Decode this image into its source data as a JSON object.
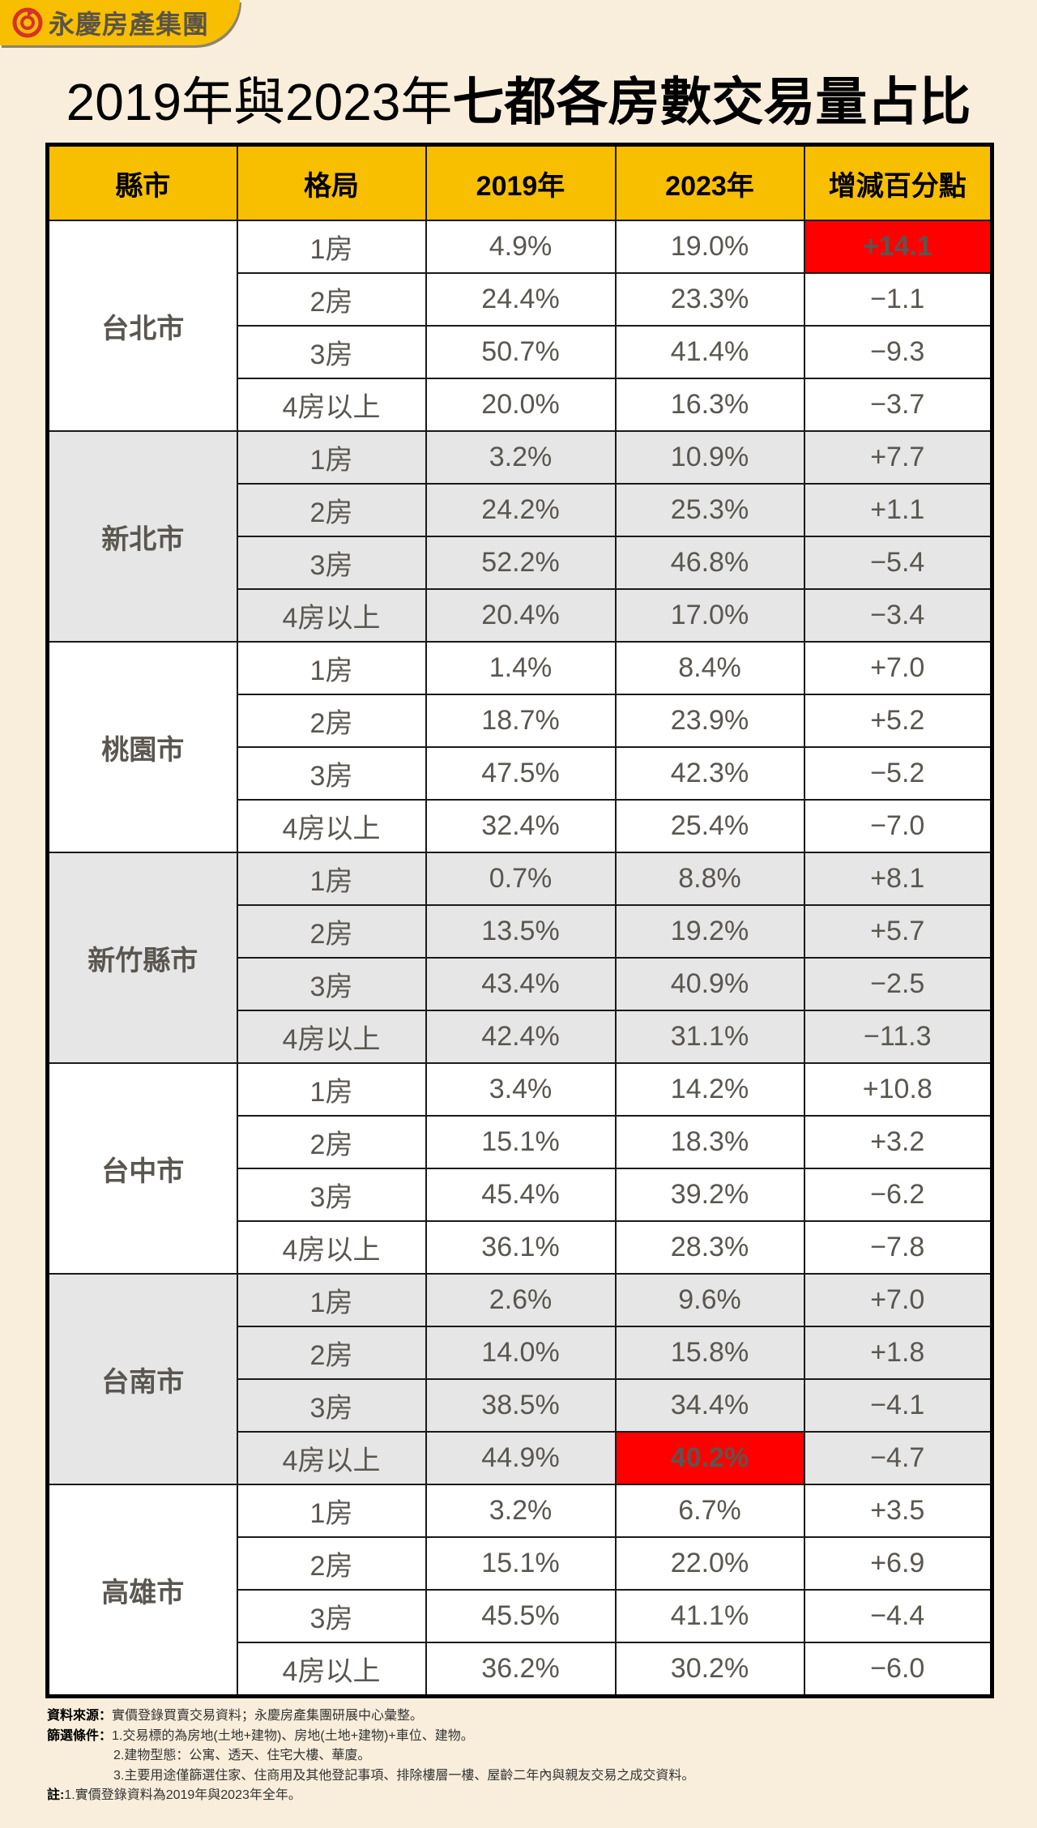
{
  "brand": {
    "logo_text": "永慶房產集團",
    "logo_icon": "yungching-swirl-icon",
    "tab_color": "#f8bf00"
  },
  "title": {
    "part1": "2019年與2023年",
    "part2": "七都各房數交易量占比"
  },
  "table": {
    "headers": [
      "縣市",
      "格局",
      "2019年",
      "2023年",
      "增減百分點"
    ],
    "groups": [
      {
        "city": "台北市",
        "rows": [
          {
            "layout": "1房",
            "y2019": "4.9%",
            "y2023": "19.0%",
            "delta": "+14.1",
            "highlight": "delta"
          },
          {
            "layout": "2房",
            "y2019": "24.4%",
            "y2023": "23.3%",
            "delta": "−1.1"
          },
          {
            "layout": "3房",
            "y2019": "50.7%",
            "y2023": "41.4%",
            "delta": "−9.3"
          },
          {
            "layout": "4房以上",
            "y2019": "20.0%",
            "y2023": "16.3%",
            "delta": "−3.7"
          }
        ]
      },
      {
        "city": "新北市",
        "rows": [
          {
            "layout": "1房",
            "y2019": "3.2%",
            "y2023": "10.9%",
            "delta": "+7.7"
          },
          {
            "layout": "2房",
            "y2019": "24.2%",
            "y2023": "25.3%",
            "delta": "+1.1"
          },
          {
            "layout": "3房",
            "y2019": "52.2%",
            "y2023": "46.8%",
            "delta": "−5.4"
          },
          {
            "layout": "4房以上",
            "y2019": "20.4%",
            "y2023": "17.0%",
            "delta": "−3.4"
          }
        ]
      },
      {
        "city": "桃園市",
        "rows": [
          {
            "layout": "1房",
            "y2019": "1.4%",
            "y2023": "8.4%",
            "delta": "+7.0"
          },
          {
            "layout": "2房",
            "y2019": "18.7%",
            "y2023": "23.9%",
            "delta": "+5.2"
          },
          {
            "layout": "3房",
            "y2019": "47.5%",
            "y2023": "42.3%",
            "delta": "−5.2"
          },
          {
            "layout": "4房以上",
            "y2019": "32.4%",
            "y2023": "25.4%",
            "delta": "−7.0"
          }
        ]
      },
      {
        "city": "新竹縣市",
        "rows": [
          {
            "layout": "1房",
            "y2019": "0.7%",
            "y2023": "8.8%",
            "delta": "+8.1"
          },
          {
            "layout": "2房",
            "y2019": "13.5%",
            "y2023": "19.2%",
            "delta": "+5.7"
          },
          {
            "layout": "3房",
            "y2019": "43.4%",
            "y2023": "40.9%",
            "delta": "−2.5"
          },
          {
            "layout": "4房以上",
            "y2019": "42.4%",
            "y2023": "31.1%",
            "delta": "−11.3"
          }
        ]
      },
      {
        "city": "台中市",
        "rows": [
          {
            "layout": "1房",
            "y2019": "3.4%",
            "y2023": "14.2%",
            "delta": "+10.8"
          },
          {
            "layout": "2房",
            "y2019": "15.1%",
            "y2023": "18.3%",
            "delta": "+3.2"
          },
          {
            "layout": "3房",
            "y2019": "45.4%",
            "y2023": "39.2%",
            "delta": "−6.2"
          },
          {
            "layout": "4房以上",
            "y2019": "36.1%",
            "y2023": "28.3%",
            "delta": "−7.8"
          }
        ]
      },
      {
        "city": "台南市",
        "rows": [
          {
            "layout": "1房",
            "y2019": "2.6%",
            "y2023": "9.6%",
            "delta": "+7.0"
          },
          {
            "layout": "2房",
            "y2019": "14.0%",
            "y2023": "15.8%",
            "delta": "+1.8"
          },
          {
            "layout": "3房",
            "y2019": "38.5%",
            "y2023": "34.4%",
            "delta": "−4.1"
          },
          {
            "layout": "4房以上",
            "y2019": "44.9%",
            "y2023": "40.2%",
            "delta": "−4.7",
            "highlight": "y2023"
          }
        ]
      },
      {
        "city": "高雄市",
        "rows": [
          {
            "layout": "1房",
            "y2019": "3.2%",
            "y2023": "6.7%",
            "delta": "+3.5"
          },
          {
            "layout": "2房",
            "y2019": "15.1%",
            "y2023": "22.0%",
            "delta": "+6.9"
          },
          {
            "layout": "3房",
            "y2019": "45.5%",
            "y2023": "41.1%",
            "delta": "−4.4"
          },
          {
            "layout": "4房以上",
            "y2019": "36.2%",
            "y2023": "30.2%",
            "delta": "−6.0"
          }
        ]
      }
    ]
  },
  "notes": {
    "source_label": "資料來源：",
    "source_text": "實價登錄買賣交易資料；永慶房產集團研展中心彙整。",
    "filter_label": "篩選條件：",
    "filter_1": "1.交易標的為房地(土地+建物)、房地(土地+建物)+車位、建物。",
    "filter_2": "2.建物型態：公寓、透天、住宅大樓、華廈。",
    "filter_3": "3.主要用途僅篩選住家、住商用及其他登記事項、排除樓層一樓、屋齡二年內與親友交易之成交資料。",
    "note_label": "註:",
    "note_1": "1.實價登錄資料為2019年與2023年全年。"
  },
  "colors": {
    "header": "#f8bf00",
    "highlight": "#ff0000",
    "background": "#f9eedb",
    "gray_band": "#e6e6e6"
  },
  "chart_data": {
    "type": "table",
    "title": "2019年與2023年七都各房數交易量占比",
    "columns": [
      "縣市",
      "格局",
      "2019年",
      "2023年",
      "增減百分點"
    ],
    "categories": [
      "1房",
      "2房",
      "3房",
      "4房以上"
    ],
    "series": [
      {
        "name": "台北市",
        "y2019": [
          4.9,
          24.4,
          50.7,
          20.0
        ],
        "y2023": [
          19.0,
          23.3,
          41.4,
          16.3
        ],
        "delta": [
          14.1,
          -1.1,
          -9.3,
          -3.7
        ]
      },
      {
        "name": "新北市",
        "y2019": [
          3.2,
          24.2,
          52.2,
          20.4
        ],
        "y2023": [
          10.9,
          25.3,
          46.8,
          17.0
        ],
        "delta": [
          7.7,
          1.1,
          -5.4,
          -3.4
        ]
      },
      {
        "name": "桃園市",
        "y2019": [
          1.4,
          18.7,
          47.5,
          32.4
        ],
        "y2023": [
          8.4,
          23.9,
          42.3,
          25.4
        ],
        "delta": [
          7.0,
          5.2,
          -5.2,
          -7.0
        ]
      },
      {
        "name": "新竹縣市",
        "y2019": [
          0.7,
          13.5,
          43.4,
          42.4
        ],
        "y2023": [
          8.8,
          19.2,
          40.9,
          31.1
        ],
        "delta": [
          8.1,
          5.7,
          -2.5,
          -11.3
        ]
      },
      {
        "name": "台中市",
        "y2019": [
          3.4,
          15.1,
          45.4,
          36.1
        ],
        "y2023": [
          14.2,
          18.3,
          39.2,
          28.3
        ],
        "delta": [
          10.8,
          3.2,
          -6.2,
          -7.8
        ]
      },
      {
        "name": "台南市",
        "y2019": [
          2.6,
          14.0,
          38.5,
          44.9
        ],
        "y2023": [
          9.6,
          15.8,
          34.4,
          40.2
        ],
        "delta": [
          7.0,
          1.8,
          -4.1,
          -4.7
        ]
      },
      {
        "name": "高雄市",
        "y2019": [
          3.2,
          15.1,
          45.5,
          36.2
        ],
        "y2023": [
          6.7,
          22.0,
          41.1,
          30.2
        ],
        "delta": [
          3.5,
          6.9,
          -4.4,
          -6.0
        ]
      }
    ],
    "highlights": [
      {
        "city": "台北市",
        "layout": "1房",
        "column": "增減百分點",
        "value": "+14.1"
      },
      {
        "city": "台南市",
        "layout": "4房以上",
        "column": "2023年",
        "value": "40.2%"
      }
    ]
  }
}
